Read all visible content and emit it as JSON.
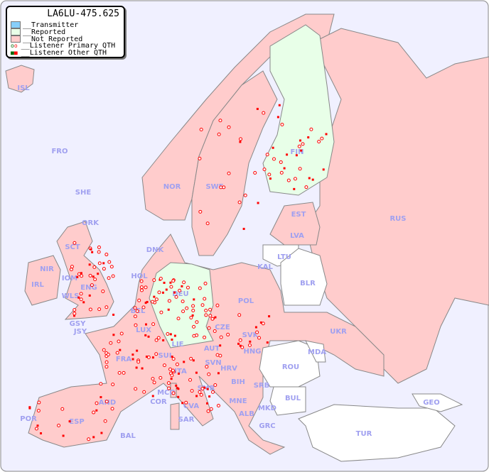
{
  "legend": {
    "title": "LA6LU-475.625",
    "items": [
      {
        "label": "__Transmitter",
        "color": "#87cefa"
      },
      {
        "label": "__Reported",
        "color": "#e8ffe8"
      },
      {
        "label": "__Not Reported",
        "color": "#ffcccc"
      },
      {
        "label": "__Listener Primary QTH"
      },
      {
        "label": "__Listener Other QTH"
      }
    ]
  },
  "colors": {
    "sea": "#f0f0ff",
    "not_reported": "#ffcccc",
    "reported": "#e8ffe8",
    "no_data": "#ffffff",
    "border": "#888888",
    "listener": "#ff0000",
    "label": "#a0a0f0"
  },
  "countries": [
    "ISL",
    "FRO",
    "SHE",
    "ORK",
    "NOR",
    "SWE",
    "FIN",
    "EST",
    "LVA",
    "LTU",
    "RUS",
    "BLR",
    "KAL",
    "DNK",
    "SCT",
    "NIR",
    "IOM",
    "IRL",
    "ENG",
    "WLS",
    "HOL",
    "DEU",
    "POL",
    "BEL",
    "LUX",
    "GSY",
    "JSY",
    "CZE",
    "SVK",
    "UKR",
    "AUT",
    "HNG",
    "MDA",
    "LIE",
    "SUI",
    "FRA",
    "SVN",
    "HRV",
    "ROU",
    "ITA",
    "BIH",
    "SRB",
    "SMR",
    "MCO",
    "COR",
    "CVA",
    "MNE",
    "BUL",
    "GEO",
    "ALB",
    "MKD",
    "AND",
    "POR",
    "ESP",
    "BAL",
    "SAR",
    "GRC",
    "TUR"
  ]
}
